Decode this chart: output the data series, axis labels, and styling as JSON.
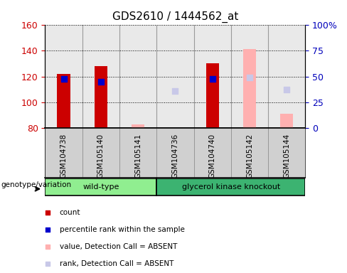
{
  "title": "GDS2610 / 1444562_at",
  "samples": [
    "GSM104738",
    "GSM105140",
    "GSM105141",
    "GSM104736",
    "GSM104740",
    "GSM105142",
    "GSM105144"
  ],
  "ylim_left": [
    80,
    160
  ],
  "ylim_right": [
    0,
    100
  ],
  "yticks_left": [
    80,
    100,
    120,
    140,
    160
  ],
  "yticks_right": [
    0,
    25,
    50,
    75,
    100
  ],
  "yticklabels_right": [
    "0",
    "25",
    "50",
    "75",
    "100%"
  ],
  "red_bar_bottom": 80,
  "red_bars": [
    122,
    128,
    83,
    null,
    130,
    null,
    null
  ],
  "blue_squares": [
    118,
    116,
    null,
    null,
    118,
    null,
    null
  ],
  "pink_bars": [
    null,
    null,
    83,
    80.5,
    null,
    141,
    91
  ],
  "lavender_squares": [
    null,
    null,
    null,
    109,
    null,
    119,
    110
  ],
  "group_labels": [
    "wild-type",
    "glycerol kinase knockout"
  ],
  "group_wt_indices": [
    0,
    3
  ],
  "group_gk_indices": [
    3,
    7
  ],
  "group_colors": [
    "#90EE90",
    "#3CB371"
  ],
  "genotype_label": "genotype/variation",
  "legend_items": [
    {
      "color": "#cc0000",
      "label": "count"
    },
    {
      "color": "#0000cc",
      "label": "percentile rank within the sample"
    },
    {
      "color": "#ffb0b0",
      "label": "value, Detection Call = ABSENT"
    },
    {
      "color": "#c8c8e8",
      "label": "rank, Detection Call = ABSENT"
    }
  ],
  "bar_width": 0.35,
  "red_color": "#cc0000",
  "blue_color": "#0000cc",
  "pink_color": "#ffb0b0",
  "lavender_color": "#c8c8e8",
  "sample_bg_color": "#d0d0d0",
  "left_axis_color": "#cc0000",
  "right_axis_color": "#0000bb",
  "title_fontsize": 11
}
